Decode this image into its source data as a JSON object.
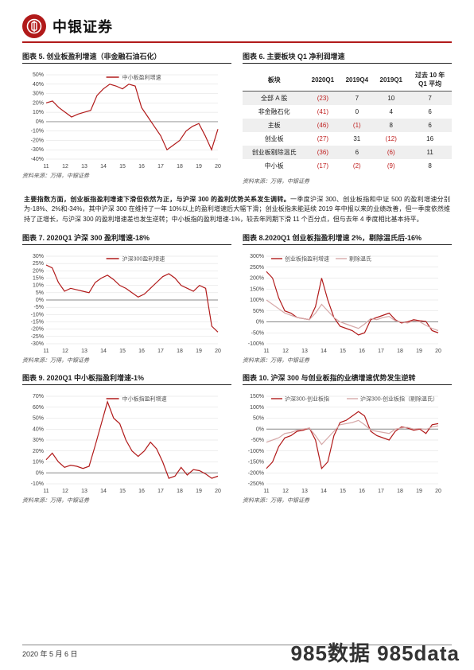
{
  "brand": "中银证券",
  "fig5": {
    "title": "图表 5. 创业板盈利增速（非金融石油石化）",
    "legend": "中小板盈利增速",
    "x": [
      11,
      12,
      13,
      14,
      15,
      16,
      17,
      18,
      19,
      20
    ],
    "y": [
      20,
      22,
      15,
      10,
      5,
      8,
      10,
      12,
      28,
      35,
      40,
      38,
      35,
      40,
      38,
      15,
      5,
      -5,
      -15,
      -30,
      -25,
      -20,
      -10,
      -5,
      -2,
      -15,
      -30,
      -8
    ],
    "ylim": [
      -40,
      50
    ],
    "ytick": 10,
    "color": "#b11a1a",
    "line_width": 1.2,
    "grid_color": "#ccc",
    "bg": "#fff",
    "font_size": 7
  },
  "fig6": {
    "title": "图表 6. 主要板块 Q1 净利润增速",
    "columns": [
      "板块",
      "2020Q1",
      "2019Q4",
      "2019Q1",
      "过去 10 年\nQ1 平均"
    ],
    "rows": [
      [
        "全部 A 股",
        "(23)",
        "7",
        "10",
        "7"
      ],
      [
        "非金融石化",
        "(41)",
        "0",
        "4",
        "6"
      ],
      [
        "主板",
        "(46)",
        "(1)",
        "8",
        "6"
      ],
      [
        "创业板",
        "(27)",
        "31",
        "(12)",
        "16"
      ],
      [
        "创业板剔除温氏",
        "(36)",
        "6",
        "(6)",
        "11"
      ],
      [
        "中小板",
        "(17)",
        "(2)",
        "(9)",
        "8"
      ]
    ],
    "neg_cells": [
      [
        0,
        1
      ],
      [
        1,
        1
      ],
      [
        2,
        1
      ],
      [
        2,
        2
      ],
      [
        3,
        1
      ],
      [
        3,
        3
      ],
      [
        4,
        1
      ],
      [
        4,
        3
      ],
      [
        5,
        1
      ],
      [
        5,
        2
      ],
      [
        5,
        3
      ]
    ],
    "alt_rows": [
      0,
      2,
      4
    ],
    "header_bg": "#fff",
    "font_size": 8
  },
  "body": "主要指数方面，创业板指盈利增速下滑但依然为正，与沪深 300 的盈利优势关系发生调转。一季度沪深 300、创业板指和中证 500 的盈利增速分别为-18%、2%和-34%，其中沪深 300 在维持了一年 10%以上的盈利增速后大幅下滑；创业板指未能延续 2019 年中报以来的业绩改善，但一季度依然维持了正增长，与沪深 300 的盈利增速差也发生逆转；中小板指的盈利增速-1%，较去年同期下滑 11 个百分点，但与去年 4 季度相比基本持平。",
  "fig7": {
    "title": "图表 7. 2020Q1 沪深 300 盈利增速-18%",
    "legend": "沪深300盈利增速",
    "y": [
      24,
      22,
      12,
      6,
      8,
      7,
      6,
      5,
      12,
      15,
      17,
      14,
      10,
      8,
      5,
      2,
      4,
      8,
      12,
      16,
      18,
      15,
      10,
      8,
      6,
      10,
      8,
      -18,
      -22
    ],
    "ylim": [
      -30,
      30
    ],
    "ytick": 5,
    "color": "#b11a1a",
    "line_width": 1.2,
    "font_size": 7
  },
  "fig8": {
    "title": "图表 8.2020Q1 创业板指盈利增速 2%，剔除温氏后-16%",
    "legends": [
      "创业板指盈利增速",
      "剔除温氏"
    ],
    "series1": [
      230,
      200,
      110,
      50,
      40,
      20,
      15,
      10,
      70,
      200,
      100,
      20,
      -20,
      -30,
      -40,
      -60,
      -50,
      10,
      20,
      30,
      40,
      10,
      -5,
      0,
      10,
      5,
      2,
      -40,
      -50
    ],
    "series2": [
      100,
      80,
      60,
      40,
      30,
      20,
      15,
      10,
      40,
      80,
      50,
      20,
      0,
      -10,
      -20,
      -30,
      -10,
      15,
      10,
      20,
      25,
      5,
      0,
      -5,
      5,
      0,
      -16,
      -30,
      -40
    ],
    "ylim": [
      -100,
      300
    ],
    "ytick": 50,
    "colors": [
      "#b11a1a",
      "#d6a9a9"
    ],
    "line_width": 1.2,
    "font_size": 7
  },
  "fig9": {
    "title": "图表 9. 2020Q1 中小板指盈利增速-1%",
    "legend": "中小板指盈利增速",
    "y": [
      12,
      18,
      10,
      5,
      7,
      6,
      4,
      6,
      25,
      45,
      65,
      50,
      45,
      30,
      20,
      15,
      20,
      28,
      22,
      10,
      -5,
      -3,
      5,
      -2,
      3,
      2,
      -1,
      -5,
      -3
    ],
    "ylim": [
      -10,
      70
    ],
    "ytick": 10,
    "color": "#b11a1a",
    "line_width": 1.2,
    "font_size": 7
  },
  "fig10": {
    "title": "图表 10. 沪深 300 与创业板指的业绩增速优势发生逆转",
    "legends": [
      "沪深300-创业板指",
      "沪深300-创业板指（剔除温氏）"
    ],
    "series1": [
      -180,
      -150,
      -80,
      -40,
      -30,
      -10,
      -5,
      5,
      -50,
      -180,
      -150,
      -30,
      30,
      40,
      60,
      80,
      60,
      -10,
      -30,
      -40,
      -50,
      -10,
      10,
      5,
      -5,
      0,
      -20,
      20,
      25
    ],
    "series2": [
      -60,
      -50,
      -40,
      -20,
      -15,
      -5,
      0,
      5,
      -30,
      -70,
      -40,
      -10,
      20,
      25,
      30,
      40,
      20,
      -5,
      -10,
      -15,
      -20,
      0,
      5,
      8,
      0,
      3,
      -2,
      10,
      15
    ],
    "ylim": [
      -250,
      150
    ],
    "ytick": 50,
    "colors": [
      "#b11a1a",
      "#d6a9a9"
    ],
    "line_width": 1.2,
    "font_size": 7
  },
  "source": "资料来源：万得，中银证券",
  "footer_date": "2020 年 5 月 6 日",
  "watermark": "985数据 985data"
}
